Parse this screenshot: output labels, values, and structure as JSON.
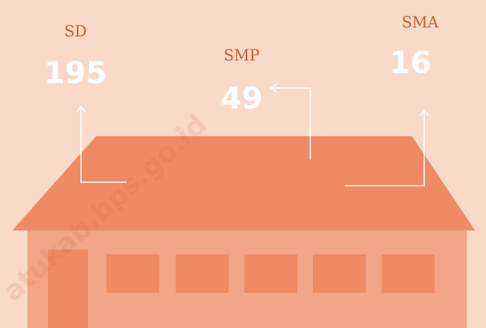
{
  "items": [
    {
      "label": "SD",
      "value": 195
    },
    {
      "label": "SMP",
      "value": 49
    },
    {
      "label": "SMA",
      "value": 16
    }
  ],
  "watermark": "atukab.bps.go.id"
}
